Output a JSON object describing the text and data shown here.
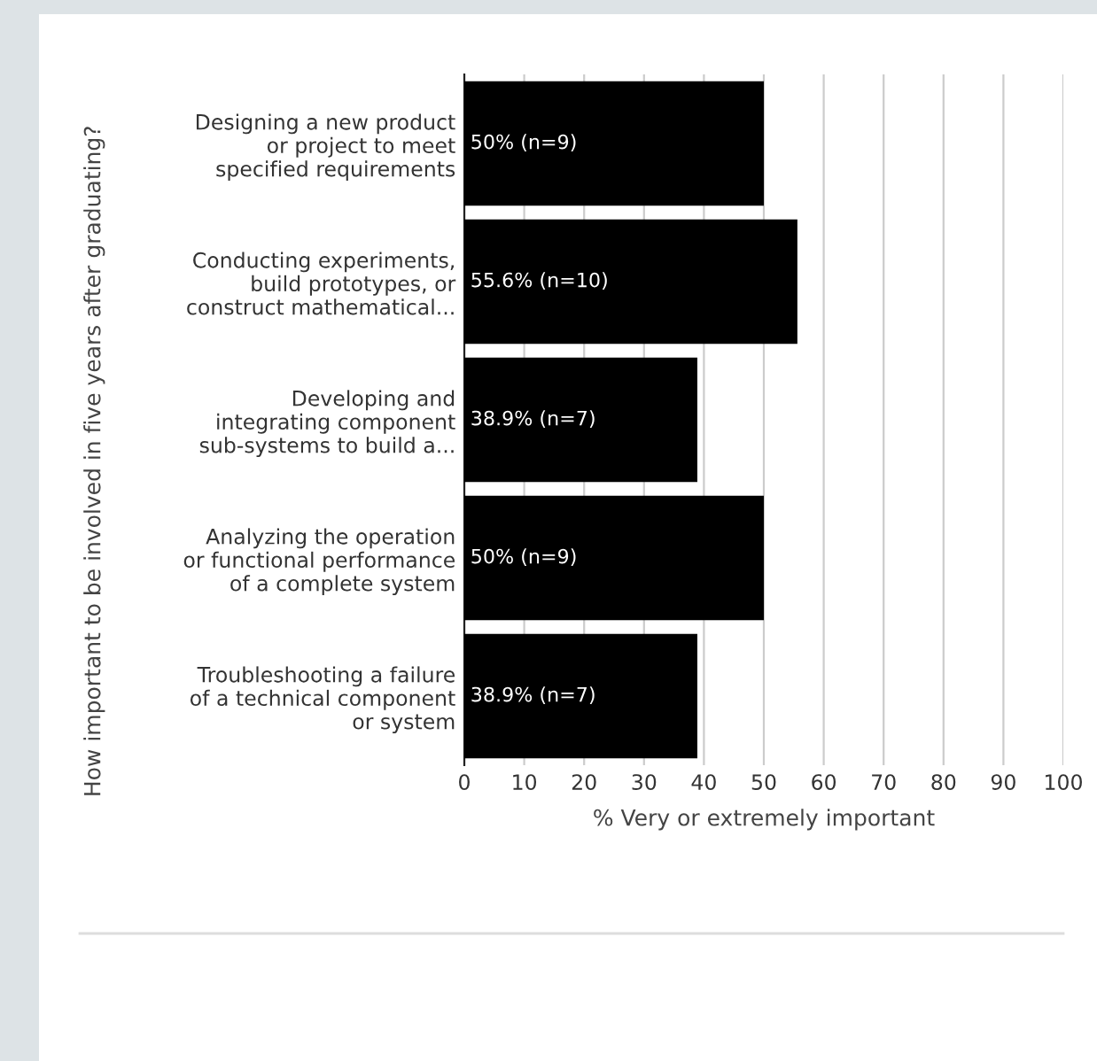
{
  "chart_data": {
    "type": "bar",
    "orientation": "horizontal",
    "categories": [
      "Designing a new product\nor project to meet\nspecified requirements",
      "Conducting experiments,\nbuild prototypes, or\nconstruct mathematical...",
      "Developing and\nintegrating component\nsub-systems to build a...",
      "Analyzing the operation\nor functional performance\nof a complete system",
      "Troubleshooting a failure\nof a technical component\nor system"
    ],
    "values": [
      50,
      55.6,
      38.9,
      50,
      38.9
    ],
    "value_labels": [
      "50% (n=9)",
      "55.6% (n=10)",
      "38.9% (n=7)",
      "50% (n=9)",
      "38.9% (n=7)"
    ],
    "color": "#000000",
    "xlabel": "% Very or extremely important",
    "ylabel": "How important to be involved in five years after graduating?",
    "xlim": [
      0,
      100
    ],
    "xticks": [
      0,
      10,
      20,
      30,
      40,
      50,
      60,
      70,
      80,
      90,
      100
    ],
    "grid": "x"
  }
}
